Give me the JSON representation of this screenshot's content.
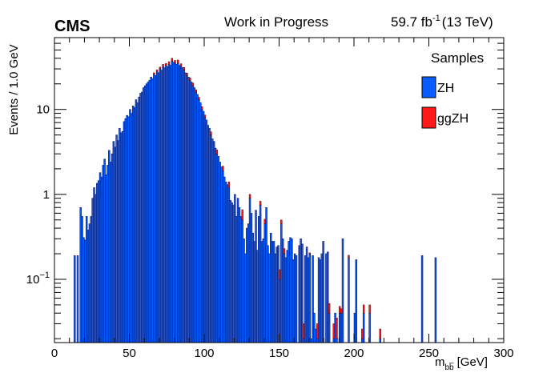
{
  "header": {
    "experiment": "CMS",
    "status": "Work in Progress",
    "lumi_value": "59.7 fb",
    "lumi_exp": "-1",
    "energy": "(13 TeV)"
  },
  "chart_data": {
    "type": "bar",
    "stacked": true,
    "histogram": true,
    "bin_width": 1.0,
    "xlabel_main": "m",
    "xlabel_sub": "bb̅",
    "xlabel_unit": "[GeV]",
    "ylabel": "Events / 1.0 GeV",
    "xlim": [
      0,
      300
    ],
    "ylim": [
      0.018,
      70
    ],
    "yscale": "log",
    "x_ticks": [
      "0",
      "50",
      "100",
      "150",
      "200",
      "250",
      "300"
    ],
    "y_ticks": [
      {
        "value": 0.1,
        "base": "10",
        "exp": "−1"
      },
      {
        "value": 1,
        "base": "1",
        "exp": ""
      },
      {
        "value": 10,
        "base": "10",
        "exp": ""
      }
    ],
    "legend": {
      "title": "Samples",
      "position": "top-right",
      "entries": [
        {
          "name": "ZH",
          "color": "#0b5cff"
        },
        {
          "name": "ggZH",
          "color": "#ff1a1a"
        }
      ]
    },
    "series": [
      {
        "name": "ZH",
        "color": "#0b5cff",
        "bins": [
          [
            13,
            0.19
          ],
          [
            15,
            0.19
          ],
          [
            17,
            0.7
          ],
          [
            18,
            0.55
          ],
          [
            19,
            0.31
          ],
          [
            20,
            0.29
          ],
          [
            21,
            0.55
          ],
          [
            22,
            0.38
          ],
          [
            23,
            0.45
          ],
          [
            24,
            0.55
          ],
          [
            25,
            0.9
          ],
          [
            26,
            1.2
          ],
          [
            27,
            1.0
          ],
          [
            28,
            1.35
          ],
          [
            29,
            1.45
          ],
          [
            30,
            1.8
          ],
          [
            31,
            1.6
          ],
          [
            32,
            2.2
          ],
          [
            33,
            2.6
          ],
          [
            34,
            1.7
          ],
          [
            35,
            2.2
          ],
          [
            36,
            3.3
          ],
          [
            37,
            2.4
          ],
          [
            38,
            3.0
          ],
          [
            39,
            4.2
          ],
          [
            40,
            3.6
          ],
          [
            41,
            5.0
          ],
          [
            42,
            4.3
          ],
          [
            43,
            6.0
          ],
          [
            44,
            5.3
          ],
          [
            45,
            5.5
          ],
          [
            46,
            7.2
          ],
          [
            47,
            7.8
          ],
          [
            48,
            8.5
          ],
          [
            49,
            8.2
          ],
          [
            50,
            10.0
          ],
          [
            51,
            9.0
          ],
          [
            52,
            11.0
          ],
          [
            53,
            10.5
          ],
          [
            54,
            13.0
          ],
          [
            55,
            12.0
          ],
          [
            56,
            14.0
          ],
          [
            57,
            15.5
          ],
          [
            58,
            16.0
          ],
          [
            59,
            18.0
          ],
          [
            60,
            19.0
          ],
          [
            61,
            20.0
          ],
          [
            62,
            21.0
          ],
          [
            63,
            22.0
          ],
          [
            64,
            24.0
          ],
          [
            65,
            23.0
          ],
          [
            66,
            26.0
          ],
          [
            67,
            25.0
          ],
          [
            68,
            28.0
          ],
          [
            69,
            27.0
          ],
          [
            70,
            30.0
          ],
          [
            71,
            29.0
          ],
          [
            72,
            32.0
          ],
          [
            73,
            31.0
          ],
          [
            74,
            33.0
          ],
          [
            75,
            32.0
          ],
          [
            76,
            34.0
          ],
          [
            77,
            33.0
          ],
          [
            78,
            37.0
          ],
          [
            79,
            36.0
          ],
          [
            80,
            35.0
          ],
          [
            81,
            34.0
          ],
          [
            82,
            35.0
          ],
          [
            83,
            33.0
          ],
          [
            84,
            32.0
          ],
          [
            85,
            31.0
          ],
          [
            86,
            29.0
          ],
          [
            87,
            27.0
          ],
          [
            88,
            25.0
          ],
          [
            89,
            24.0
          ],
          [
            90,
            22.0
          ],
          [
            91,
            21.0
          ],
          [
            92,
            19.0
          ],
          [
            93,
            18.0
          ],
          [
            94,
            16.0
          ],
          [
            95,
            15.0
          ],
          [
            96,
            13.0
          ],
          [
            97,
            12.0
          ],
          [
            98,
            10.0
          ],
          [
            99,
            9.5
          ],
          [
            100,
            8.0
          ],
          [
            101,
            7.5
          ],
          [
            102,
            6.5
          ],
          [
            103,
            6.0
          ],
          [
            104,
            5.0
          ],
          [
            105,
            4.5
          ],
          [
            106,
            4.2
          ],
          [
            107,
            3.5
          ],
          [
            108,
            3.0
          ],
          [
            109,
            2.8
          ],
          [
            110,
            2.4
          ],
          [
            111,
            2.1
          ],
          [
            112,
            1.9
          ],
          [
            113,
            1.6
          ],
          [
            114,
            1.4
          ],
          [
            115,
            1.3
          ],
          [
            116,
            1.2
          ],
          [
            117,
            0.85
          ],
          [
            118,
            0.8
          ],
          [
            119,
            0.75
          ],
          [
            120,
            1.0
          ],
          [
            121,
            0.55
          ],
          [
            122,
            0.9
          ],
          [
            123,
            0.7
          ],
          [
            124,
            0.55
          ],
          [
            125,
            0.5
          ],
          [
            126,
            0.3
          ],
          [
            127,
            0.2
          ],
          [
            128,
            0.4
          ],
          [
            129,
            0.45
          ],
          [
            130,
            0.9
          ],
          [
            131,
            0.6
          ],
          [
            132,
            0.35
          ],
          [
            133,
            0.28
          ],
          [
            134,
            0.65
          ],
          [
            135,
            0.22
          ],
          [
            136,
            0.55
          ],
          [
            137,
            0.75
          ],
          [
            138,
            0.28
          ],
          [
            139,
            0.3
          ],
          [
            140,
            0.45
          ],
          [
            141,
            0.7
          ],
          [
            142,
            0.25
          ],
          [
            143,
            0.2
          ],
          [
            144,
            0.35
          ],
          [
            145,
            0.28
          ],
          [
            146,
            0.28
          ],
          [
            147,
            0.2
          ],
          [
            148,
            0.24
          ],
          [
            149,
            0.25
          ],
          [
            150,
            0.1
          ],
          [
            151,
            0.45
          ],
          [
            152,
            0.3
          ],
          [
            153,
            0.2
          ],
          [
            154,
            0.18
          ],
          [
            155,
            0.22
          ],
          [
            156,
            0.28
          ],
          [
            157,
            0.31
          ],
          [
            158,
            0.3
          ],
          [
            159,
            0.17
          ],
          [
            160,
            0.2
          ],
          [
            161,
            0.19
          ],
          [
            163,
            0.25
          ],
          [
            164,
            0.3
          ],
          [
            165,
            0.26
          ],
          [
            166,
            0.02
          ],
          [
            167,
            0.19
          ],
          [
            168,
            0.24
          ],
          [
            169,
            0.18
          ],
          [
            170,
            0.2
          ],
          [
            171,
            0.02
          ],
          [
            172,
            0.19
          ],
          [
            173,
            0.04
          ],
          [
            174,
            0.026
          ],
          [
            175,
            0.02
          ],
          [
            176,
            0.18
          ],
          [
            177,
            0.17
          ],
          [
            178,
            0.2
          ],
          [
            179,
            0.28
          ],
          [
            181,
            0.2
          ],
          [
            182,
            0.21
          ],
          [
            183,
            0.04
          ],
          [
            186,
            0.02
          ],
          [
            187,
            0.04
          ],
          [
            188,
            0.02
          ],
          [
            190,
            0.04
          ],
          [
            191,
            0.04
          ],
          [
            192,
            0.3
          ],
          [
            196,
            0.18
          ],
          [
            200,
            0.04
          ],
          [
            201,
            0.17
          ],
          [
            205,
            0.02
          ],
          [
            206,
            0.04
          ],
          [
            210,
            0.04
          ],
          [
            217,
            0.02
          ],
          [
            245,
            0.19
          ],
          [
            254,
            0.18
          ]
        ]
      },
      {
        "name": "ggZH",
        "color": "#ff1a1a",
        "bins": [
          [
            66,
            1.0
          ],
          [
            68,
            1.2
          ],
          [
            70,
            1.5
          ],
          [
            72,
            2.0
          ],
          [
            74,
            1.8
          ],
          [
            76,
            2.5
          ],
          [
            78,
            3.0
          ],
          [
            80,
            2.8
          ],
          [
            82,
            3.2
          ],
          [
            84,
            2.5
          ],
          [
            86,
            2.2
          ],
          [
            88,
            1.8
          ],
          [
            90,
            1.5
          ],
          [
            92,
            1.4
          ],
          [
            94,
            1.0
          ],
          [
            96,
            0.9
          ],
          [
            98,
            0.8
          ],
          [
            100,
            0.6
          ],
          [
            104,
            0.45
          ],
          [
            108,
            0.35
          ],
          [
            112,
            0.25
          ],
          [
            116,
            0.2
          ],
          [
            125,
            0.16
          ],
          [
            130,
            0.1
          ],
          [
            137,
            0.08
          ],
          [
            140,
            0.06
          ],
          [
            150,
            0.03
          ],
          [
            151,
            0.05
          ],
          [
            153,
            0.03
          ],
          [
            166,
            0.01
          ],
          [
            170,
            0.005
          ],
          [
            175,
            0.01
          ],
          [
            183,
            0.012
          ],
          [
            186,
            0.01
          ],
          [
            188,
            0.015
          ],
          [
            190,
            0.008
          ],
          [
            191,
            0.005
          ],
          [
            196,
            0.012
          ],
          [
            205,
            0.006
          ],
          [
            206,
            0.01
          ],
          [
            210,
            0.01
          ],
          [
            217,
            0.006
          ]
        ]
      }
    ]
  }
}
